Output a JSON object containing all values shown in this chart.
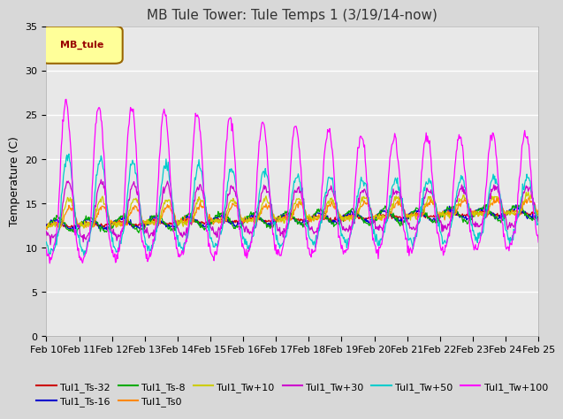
{
  "title": "MB Tule Tower: Tule Temps 1 (3/19/14-now)",
  "ylabel": "Temperature (C)",
  "ylim": [
    0,
    35
  ],
  "yticks": [
    0,
    5,
    10,
    15,
    20,
    25,
    30,
    35
  ],
  "xtick_labels": [
    "Feb 10",
    "Feb 11",
    "Feb 12",
    "Feb 13",
    "Feb 14",
    "Feb 15",
    "Feb 16",
    "Feb 17",
    "Feb 18",
    "Feb 19",
    "Feb 20",
    "Feb 21",
    "Feb 22",
    "Feb 23",
    "Feb 24",
    "Feb 25"
  ],
  "legend_label": "MB_tule",
  "legend_bg": "#ffff99",
  "legend_border": "#996600",
  "series": [
    {
      "name": "Tul1_Ts-32",
      "color": "#cc0000"
    },
    {
      "name": "Tul1_Ts-16",
      "color": "#0000cc"
    },
    {
      "name": "Tul1_Ts-8",
      "color": "#00aa00"
    },
    {
      "name": "Tul1_Ts0",
      "color": "#ff8800"
    },
    {
      "name": "Tul1_Tw+10",
      "color": "#cccc00"
    },
    {
      "name": "Tul1_Tw+30",
      "color": "#cc00cc"
    },
    {
      "name": "Tul1_Tw+50",
      "color": "#00cccc"
    },
    {
      "name": "Tul1_Tw+100",
      "color": "#ff00ff"
    }
  ],
  "background_color": "#d8d8d8",
  "plot_bg": "#e8e8e8",
  "grid_color": "#ffffff",
  "title_fontsize": 11,
  "axis_fontsize": 9,
  "tick_fontsize": 8
}
